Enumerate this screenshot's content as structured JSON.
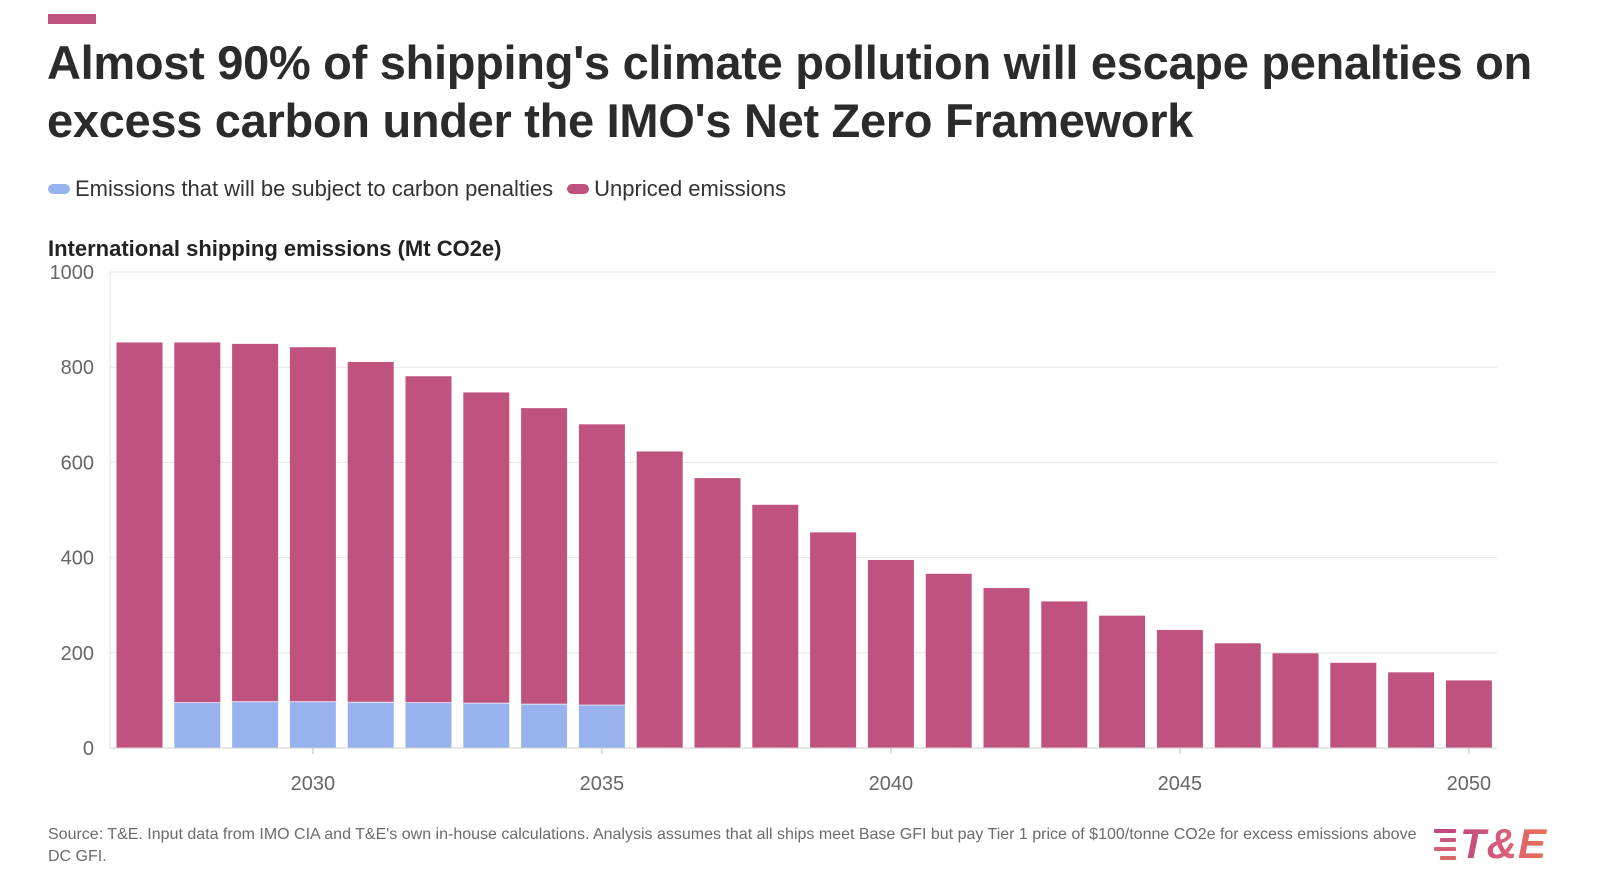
{
  "header": {
    "title": "Almost 90% of shipping's climate pollution will escape penalties on excess carbon under the IMO's Net Zero Framework",
    "accent_color": "#c0527f"
  },
  "legend": {
    "items": [
      {
        "label": "Emissions that will be subject to carbon penalties",
        "color": "#97b2ef"
      },
      {
        "label": "Unpriced emissions",
        "color": "#c0527f"
      }
    ]
  },
  "footer": {
    "source": "Source: T&E. Input data from IMO CIA and T&E's own in-house calculations. Analysis assumes that all ships meet Base GFI but pay Tier 1 price of $100/tonne CO2e for excess emissions above DC GFI.",
    "logo_text": "T&E",
    "logo_icon": "stripes-icon"
  },
  "chart_data": {
    "type": "bar",
    "stacked": true,
    "ylabel": "International shipping emissions (Mt CO2e)",
    "ylim": [
      0,
      1000
    ],
    "yticks": [
      0,
      200,
      400,
      600,
      800,
      1000
    ],
    "xticks": [
      2030,
      2035,
      2040,
      2045,
      2050
    ],
    "grid": true,
    "legend_position": "top-left",
    "x": [
      2027,
      2028,
      2029,
      2030,
      2031,
      2032,
      2033,
      2034,
      2035,
      2036,
      2037,
      2038,
      2039,
      2040,
      2041,
      2042,
      2043,
      2044,
      2045,
      2046,
      2047,
      2048,
      2049,
      2050
    ],
    "series": [
      {
        "name": "Emissions that will be subject to carbon penalties",
        "color": "#97b2ef",
        "values": [
          0,
          96,
          98,
          98,
          97,
          96,
          95,
          93,
          91,
          0,
          0,
          0,
          0,
          0,
          0,
          0,
          0,
          0,
          0,
          0,
          0,
          0,
          0,
          0
        ]
      },
      {
        "name": "Unpriced emissions",
        "color": "#c0527f",
        "values": [
          852,
          756,
          751,
          744,
          714,
          685,
          652,
          621,
          589,
          623,
          567,
          511,
          453,
          395,
          366,
          336,
          308,
          278,
          248,
          220,
          199,
          179,
          159,
          142
        ]
      }
    ]
  }
}
